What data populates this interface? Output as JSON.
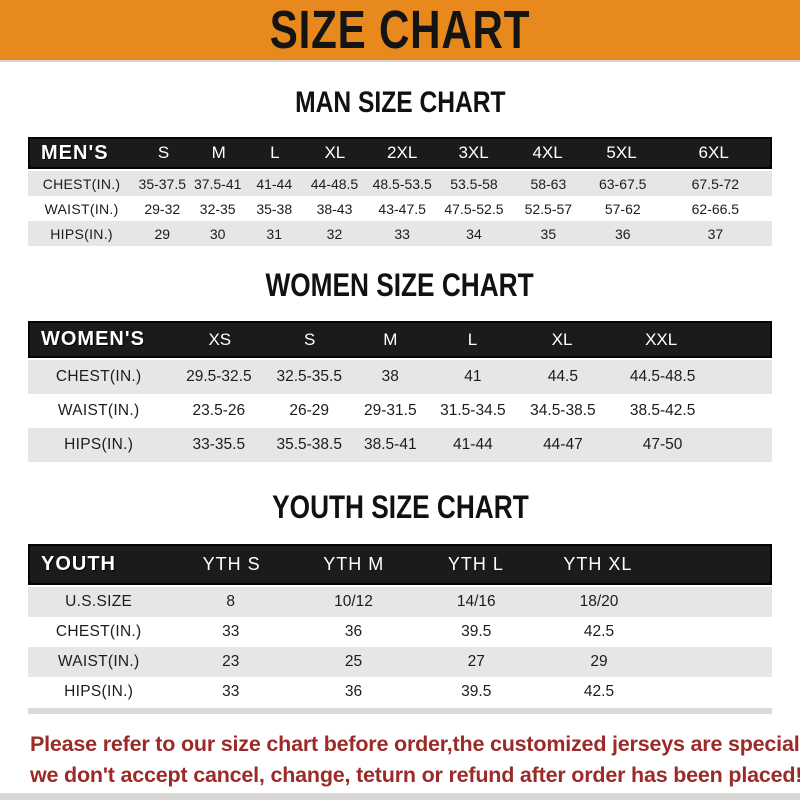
{
  "banner": {
    "title": "SIZE CHART"
  },
  "colors": {
    "banner_bg": "#E8891E",
    "bar_bg": "#1B1B1B",
    "row_alt_bg": "#E7E6E4",
    "notice_text": "#9B2B28"
  },
  "sections": [
    {
      "title": "MAN SIZE CHART",
      "corner_label": "MEN'S",
      "columns": [
        "S",
        "M",
        "L",
        "XL",
        "2XL",
        "3XL",
        "4XL",
        "5XL",
        "6XL"
      ],
      "rows": [
        {
          "label": "CHEST(IN.)",
          "values": [
            "35-37.5",
            "37.5-41",
            "41-44",
            "44-48.5",
            "48.5-53.5",
            "53.5-58",
            "58-63",
            "63-67.5",
            "67.5-72"
          ]
        },
        {
          "label": "WAIST(IN.)",
          "values": [
            "29-32",
            "32-35",
            "35-38",
            "38-43",
            "43-47.5",
            "47.5-52.5",
            "52.5-57",
            "57-62",
            "62-66.5"
          ]
        },
        {
          "label": "HIPS(IN.)",
          "values": [
            "29",
            "30",
            "31",
            "32",
            "33",
            "34",
            "35",
            "36",
            "37"
          ]
        }
      ]
    },
    {
      "title": "WOMEN SIZE CHART",
      "corner_label": "WOMEN'S",
      "columns": [
        "XS",
        "S",
        "M",
        "L",
        "XL",
        "XXL"
      ],
      "rows": [
        {
          "label": "CHEST(IN.)",
          "values": [
            "29.5-32.5",
            "32.5-35.5",
            "38",
            "41",
            "44.5",
            "44.5-48.5"
          ]
        },
        {
          "label": "WAIST(IN.)",
          "values": [
            "23.5-26",
            "26-29",
            "29-31.5",
            "31.5-34.5",
            "34.5-38.5",
            "38.5-42.5"
          ]
        },
        {
          "label": "HIPS(IN.)",
          "values": [
            "33-35.5",
            "35.5-38.5",
            "38.5-41",
            "41-44",
            "44-47",
            "47-50"
          ]
        }
      ]
    },
    {
      "title": "YOUTH SIZE CHART",
      "corner_label": "YOUTH",
      "columns": [
        "YTH S",
        "YTH M",
        "YTH L",
        "YTH XL"
      ],
      "rows": [
        {
          "label": "U.S.SIZE",
          "values": [
            "8",
            "10/12",
            "14/16",
            "18/20"
          ]
        },
        {
          "label": "CHEST(IN.)",
          "values": [
            "33",
            "36",
            "39.5",
            "42.5"
          ]
        },
        {
          "label": "WAIST(IN.)",
          "values": [
            "23",
            "25",
            "27",
            "29"
          ]
        },
        {
          "label": "HIPS(IN.)",
          "values": [
            "33",
            "36",
            "39.5",
            "42.5"
          ]
        }
      ]
    }
  ],
  "footer": {
    "lines": [
      "Please refer to our size chart before order,the customized jerseys are special products,",
      "we don't accept cancel, change, teturn or refund after order has been placed!"
    ]
  }
}
